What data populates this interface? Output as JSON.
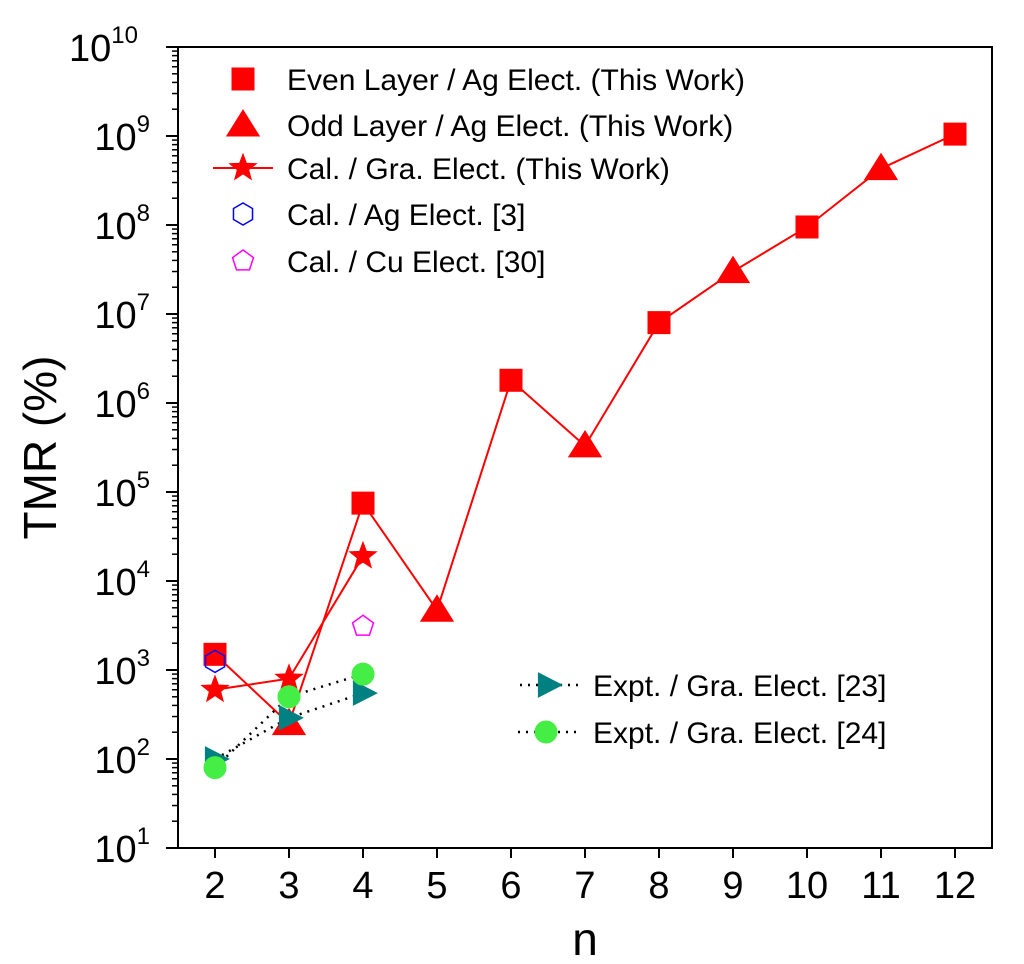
{
  "chart_data": {
    "type": "scatter",
    "title": "",
    "xlabel": "n",
    "ylabel": "TMR (%)",
    "x_ticks": [
      "2",
      "3",
      "4",
      "5",
      "6",
      "7",
      "8",
      "9",
      "10",
      "11",
      "12"
    ],
    "x_range": [
      1.5,
      12.5
    ],
    "y_scale": "log",
    "ylim": [
      10,
      10000000000
    ],
    "y_ticks": [
      {
        "base": "10",
        "exp": "1",
        "value": 10
      },
      {
        "base": "10",
        "exp": "2",
        "value": 100
      },
      {
        "base": "10",
        "exp": "3",
        "value": 1000
      },
      {
        "base": "10",
        "exp": "4",
        "value": 10000
      },
      {
        "base": "10",
        "exp": "5",
        "value": 100000
      },
      {
        "base": "10",
        "exp": "6",
        "value": 1000000
      },
      {
        "base": "10",
        "exp": "7",
        "value": 10000000
      },
      {
        "base": "10",
        "exp": "8",
        "value": 100000000
      },
      {
        "base": "10",
        "exp": "9",
        "value": 1000000000
      },
      {
        "base": "10",
        "exp": "10",
        "value": 10000000000
      }
    ],
    "grid": false,
    "legend_placement": "top-left and bottom-right",
    "main_line": {
      "color": "#ff0000",
      "points": [
        [
          2,
          1500
        ],
        [
          3,
          250
        ],
        [
          4,
          75000
        ],
        [
          5,
          4700
        ],
        [
          6,
          1800000
        ],
        [
          7,
          330000
        ],
        [
          8,
          8000000
        ],
        [
          9,
          30000000
        ],
        [
          10,
          95000000
        ],
        [
          11,
          430000000
        ],
        [
          12,
          1050000000
        ]
      ]
    },
    "series": [
      {
        "name": "Even Layer / Ag Elect. (This Work)",
        "marker": "square",
        "color": "#ff0000",
        "filled": true,
        "line": "none",
        "points": [
          [
            2,
            1500
          ],
          [
            4,
            75000
          ],
          [
            6,
            1800000
          ],
          [
            8,
            8000000
          ],
          [
            10,
            95000000
          ],
          [
            12,
            1050000000
          ]
        ]
      },
      {
        "name": "Odd Layer / Ag Elect. (This Work)",
        "marker": "triangle",
        "color": "#ff0000",
        "filled": true,
        "line": "none",
        "points": [
          [
            3,
            250
          ],
          [
            5,
            4700
          ],
          [
            7,
            330000
          ],
          [
            9,
            30000000
          ],
          [
            11,
            430000000
          ]
        ]
      },
      {
        "name": "Cal. / Gra. Elect. (This Work)",
        "marker": "star",
        "color": "#ff0000",
        "filled": true,
        "line": "solid",
        "points": [
          [
            2,
            600
          ],
          [
            3,
            800
          ],
          [
            4,
            19000
          ]
        ]
      },
      {
        "name": "Cal. / Ag Elect. [3]",
        "marker": "hexagon",
        "color": "#0000ff",
        "filled": false,
        "line": "none",
        "points": [
          [
            2,
            1250
          ]
        ]
      },
      {
        "name": "Cal. / Cu Elect. [30]",
        "marker": "pentagon",
        "color": "#ff00ff",
        "filled": false,
        "line": "none",
        "points": [
          [
            4,
            3100
          ]
        ]
      },
      {
        "name": "Expt. / Gra. Elect. [23]",
        "marker": "right-triangle",
        "color": "#008080",
        "filled": true,
        "line": "dotted",
        "points": [
          [
            2,
            100
          ],
          [
            3,
            290
          ],
          [
            4,
            550
          ]
        ]
      },
      {
        "name": "Expt. / Gra. Elect. [24]",
        "marker": "circle",
        "color": "#44ee44",
        "filled": true,
        "line": "dotted",
        "points": [
          [
            2,
            80
          ],
          [
            3,
            500
          ],
          [
            4,
            900
          ]
        ]
      }
    ]
  }
}
